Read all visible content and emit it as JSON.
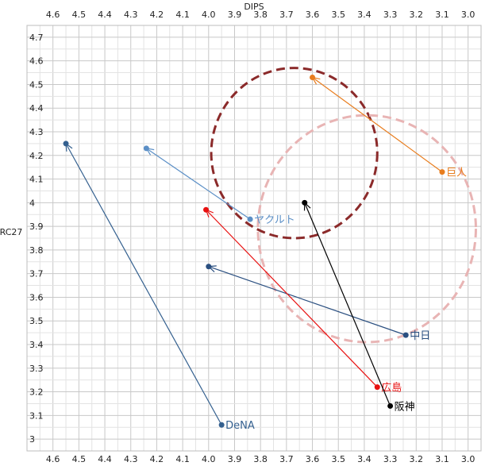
{
  "chart_data": {
    "type": "scatter",
    "xlabel": "DIPS",
    "ylabel": "RC27",
    "x_reversed": true,
    "xlim": [
      2.95,
      4.7
    ],
    "ylim": [
      2.95,
      4.75
    ],
    "x_ticks": [
      "4.6",
      "4.5",
      "4.4",
      "4.3",
      "4.2",
      "4.1",
      "4.0",
      "3.9",
      "3.8",
      "3.7",
      "3.6",
      "3.5",
      "3.4",
      "3.3",
      "3.2",
      "3.1",
      "3.0"
    ],
    "y_ticks": [
      "4.7",
      "4.6",
      "4.5",
      "4.4",
      "4.3",
      "4.2",
      "4.1",
      "4",
      "3.9",
      "3.8",
      "3.7",
      "3.6",
      "3.5",
      "3.4",
      "3.3",
      "3.2",
      "3.1",
      "3"
    ],
    "grid": true,
    "series": [
      {
        "name": "巨人",
        "color": "#e87d1e",
        "from": {
          "x": 3.1,
          "y": 4.13
        },
        "to": {
          "x": 3.6,
          "y": 4.53
        }
      },
      {
        "name": "ヤクルト",
        "color": "#5b8fc6",
        "from": {
          "x": 3.84,
          "y": 3.93
        },
        "to": {
          "x": 4.24,
          "y": 4.23
        }
      },
      {
        "name": "中日",
        "color": "#2a4f80",
        "from": {
          "x": 3.24,
          "y": 3.44
        },
        "to": {
          "x": 4.0,
          "y": 3.73
        }
      },
      {
        "name": "広島",
        "color": "#e81010",
        "from": {
          "x": 3.35,
          "y": 3.22
        },
        "to": {
          "x": 4.01,
          "y": 3.97
        }
      },
      {
        "name": "阪神",
        "color": "#000000",
        "from": {
          "x": 3.3,
          "y": 3.14
        },
        "to": {
          "x": 3.63,
          "y": 4.0
        }
      },
      {
        "name": "DeNA",
        "color": "#34608f",
        "from": {
          "x": 3.95,
          "y": 3.06
        },
        "to": {
          "x": 4.55,
          "y": 4.25
        }
      }
    ],
    "annotations": [
      {
        "shape": "ellipse",
        "style": "dashed",
        "color": "#8b2a2a",
        "cx": 3.67,
        "cy": 4.21,
        "rx": 0.32,
        "ry": 0.36
      },
      {
        "shape": "ellipse",
        "style": "dashed",
        "color": "#e8b4b4",
        "cx": 3.39,
        "cy": 3.89,
        "rx": 0.42,
        "ry": 0.48
      }
    ]
  }
}
